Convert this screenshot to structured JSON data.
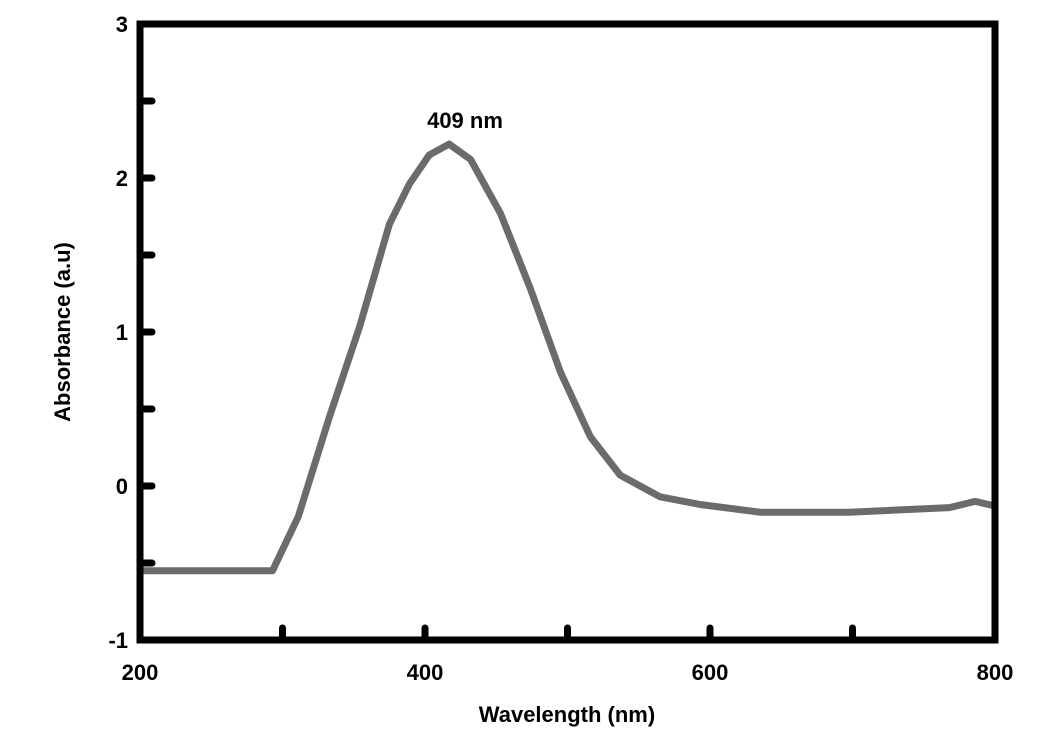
{
  "chart_data": {
    "type": "line",
    "title": "",
    "xlabel": "Wavelength (nm)",
    "ylabel": "Absorbance (a.u)",
    "xlim": [
      200,
      800
    ],
    "ylim": [
      -1,
      3
    ],
    "xticks": [
      200,
      400,
      600,
      800
    ],
    "xtick_labels": [
      "200",
      "400",
      "600",
      "800"
    ],
    "xminor": [
      300,
      500,
      700
    ],
    "yticks": [
      -1,
      0,
      1,
      2,
      3
    ],
    "ytick_labels": [
      "-1",
      "0",
      "1",
      "2",
      "3"
    ],
    "yminor": [
      -0.5,
      0.5,
      1.5,
      2.5
    ],
    "grid": false,
    "annotation": {
      "text": "409 nm",
      "x": 409,
      "y": 2.22
    },
    "series": [
      {
        "name": "Absorbance",
        "color": "#6b6b6b",
        "x": [
          200,
          293,
          311,
          333,
          354,
          375,
          389,
          403,
          417,
          432,
          453,
          474,
          495,
          516,
          537,
          565,
          593,
          635,
          698,
          768,
          786,
          800
        ],
        "y": [
          -0.55,
          -0.55,
          -0.2,
          0.45,
          1.03,
          1.7,
          1.96,
          2.15,
          2.22,
          2.12,
          1.77,
          1.28,
          0.74,
          0.32,
          0.07,
          -0.07,
          -0.12,
          -0.17,
          -0.17,
          -0.14,
          -0.1,
          -0.13
        ]
      }
    ]
  }
}
